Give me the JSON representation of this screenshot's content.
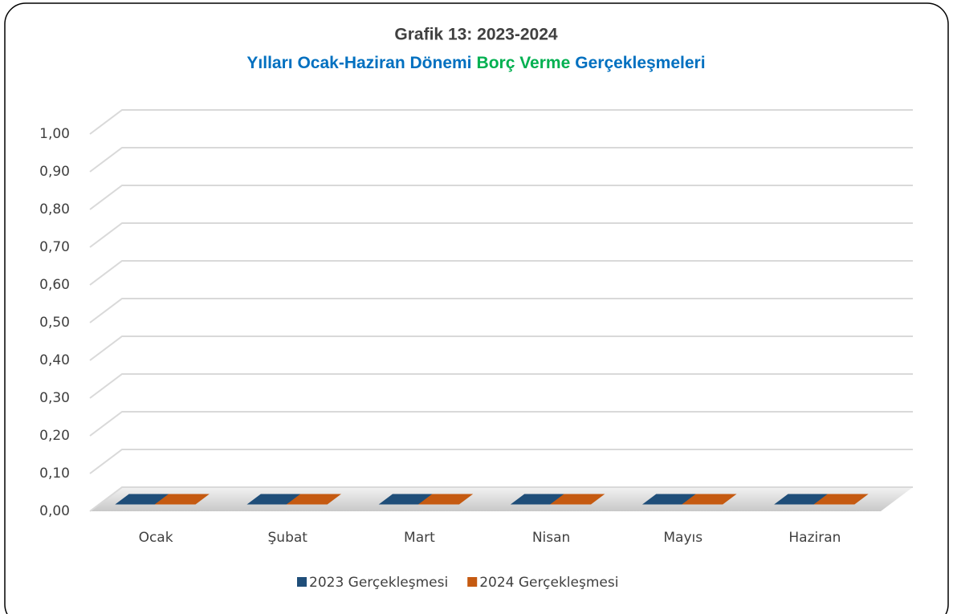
{
  "chart_data": {
    "type": "bar3d",
    "title": "Grafik 13: 2023-2024",
    "subtitle": [
      {
        "text": "Yılları Ocak-Haziran Dönemi",
        "color": "#0070c0"
      },
      {
        "text": "Borç Verme",
        "color": "#00b050"
      },
      {
        "text": "Gerçekleşmeleri",
        "color": "#0070c0"
      }
    ],
    "title_color": "#0070c0",
    "categories": [
      "Ocak",
      "Şubat",
      "Mart",
      "Nisan",
      "Mayıs",
      "Haziran"
    ],
    "series": [
      {
        "name": "2023 Gerçekleşmesi",
        "color": "#1f4e79",
        "values": [
          0,
          0,
          0,
          0,
          0,
          0
        ]
      },
      {
        "name": "2024 Gerçekleşmesi",
        "color": "#c55a11",
        "values": [
          0,
          0,
          0,
          0,
          0,
          0
        ]
      }
    ],
    "ylim": [
      0,
      1
    ],
    "yticks": [
      {
        "value": 0,
        "label": "0,00"
      },
      {
        "value": 0.1,
        "label": "0,10"
      },
      {
        "value": 0.2,
        "label": "0,20"
      },
      {
        "value": 0.3,
        "label": "0,30"
      },
      {
        "value": 0.4,
        "label": "0,40"
      },
      {
        "value": 0.5,
        "label": "0,50"
      },
      {
        "value": 0.6,
        "label": "0,60"
      },
      {
        "value": 0.7,
        "label": "0,70"
      },
      {
        "value": 0.8,
        "label": "0,80"
      },
      {
        "value": 0.9,
        "label": "0,90"
      },
      {
        "value": 1,
        "label": "1,00"
      }
    ],
    "grid": true,
    "legend": "bottom"
  }
}
